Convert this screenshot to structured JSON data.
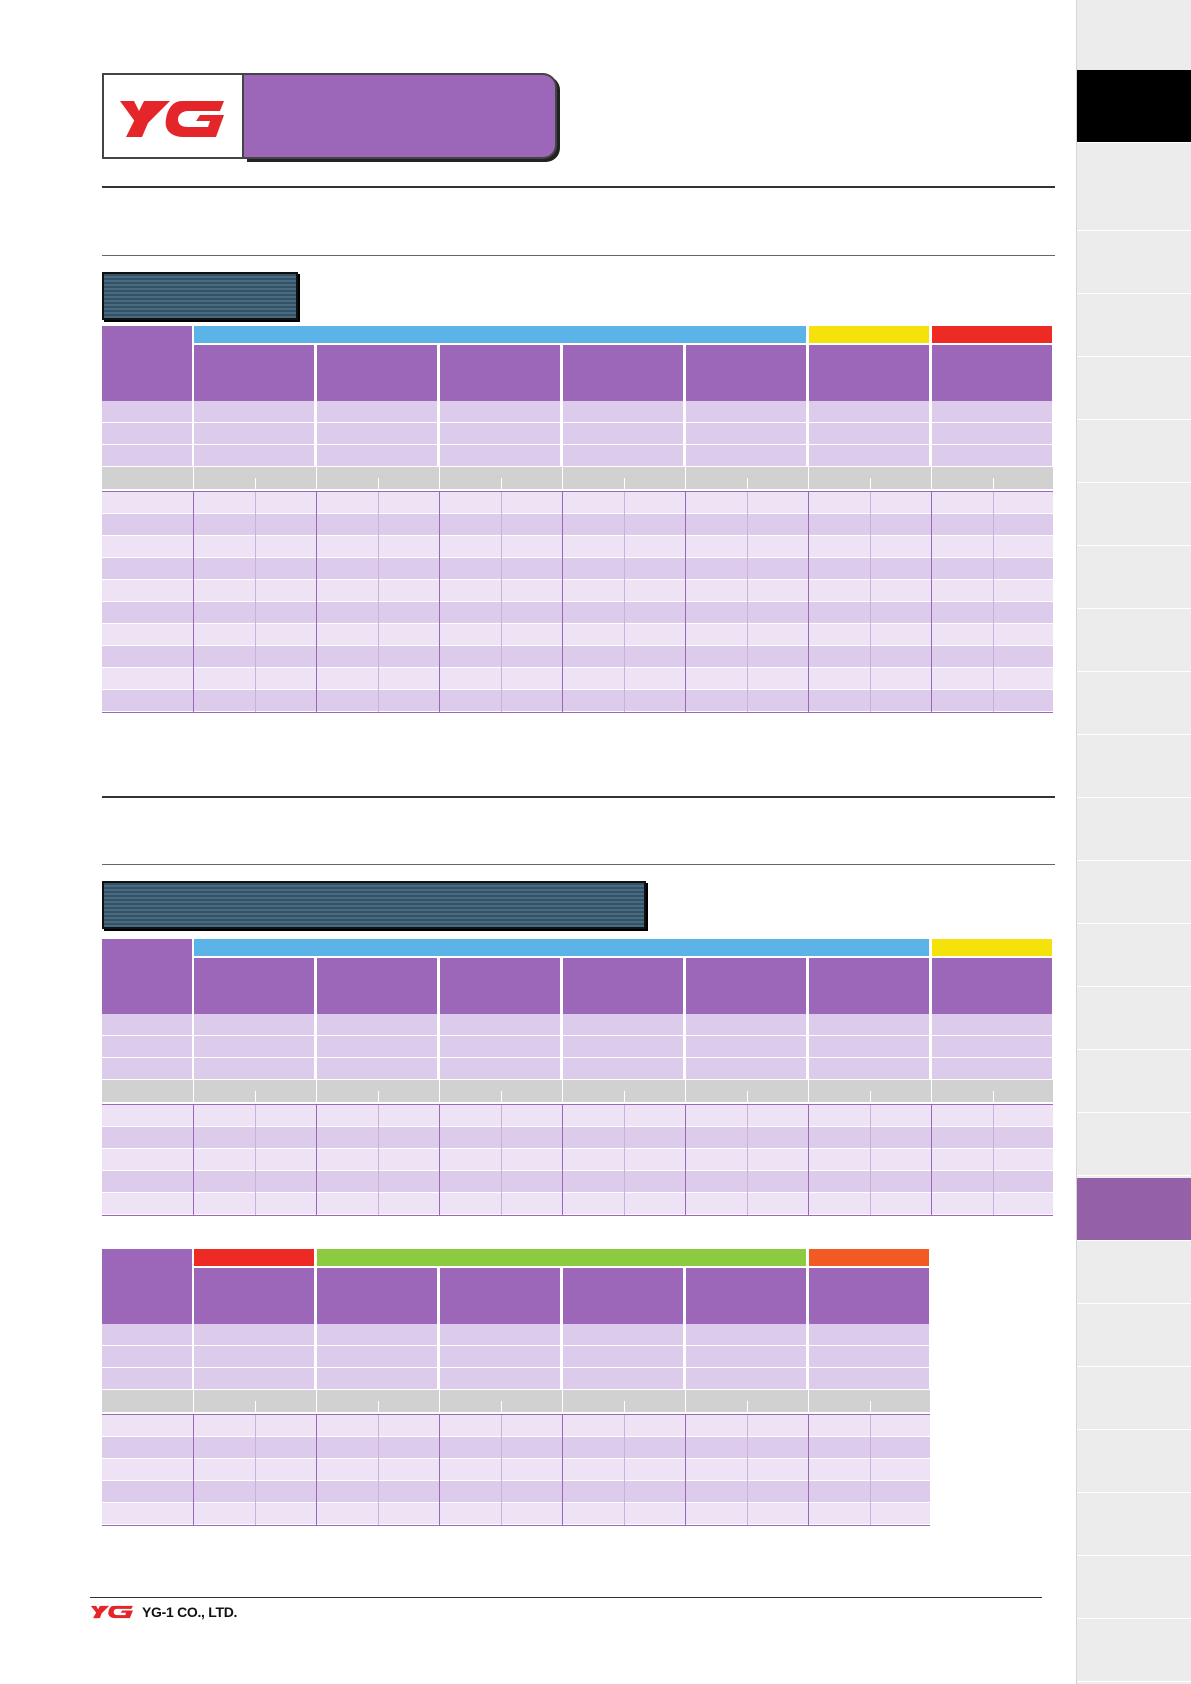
{
  "footer": {
    "company": "YG-1 CO., LTD.",
    "logo_text": "YG"
  },
  "header": {
    "logo_text": "YG"
  },
  "colors": {
    "purple": "#9c66b9",
    "lavender_row": "#dccbea",
    "lavender_light": "#ede3f4",
    "blue_band": "#5bb3e8",
    "yellow_band": "#f5e20a",
    "red_band": "#ee2a24",
    "green_band": "#8ccb3f",
    "orange_band": "#f15a22",
    "logo_red": "#e4262a",
    "sidebar_active": "#9461a8"
  },
  "icons": [
    "yg-logo-icon"
  ]
}
